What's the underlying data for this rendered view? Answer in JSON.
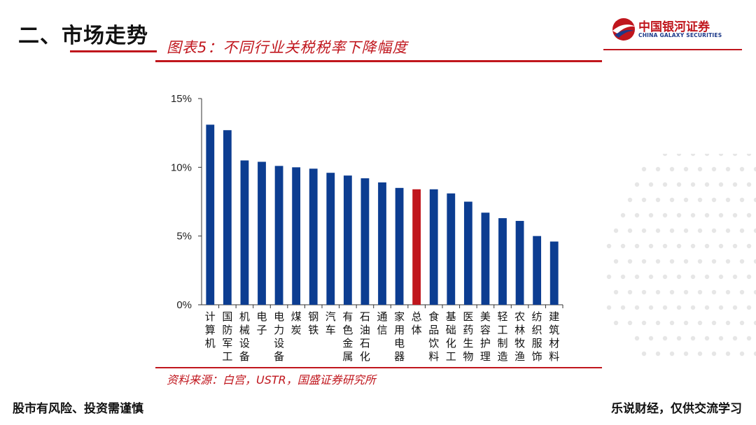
{
  "header": {
    "section_title": "二、市场走势",
    "figure_title": "图表5：不同行业关税税率下降幅度",
    "logo_cn": "中国银河证券",
    "logo_en": "CHINA GALAXY SECURITIES"
  },
  "source": "资料来源：白宫，USTR，国盛证券研究所",
  "footer": {
    "left": "股市有风险、投资需谨慎",
    "right": "乐说财经，仅供交流学习"
  },
  "colors": {
    "bar": "#0c3d91",
    "highlight": "#c0161d",
    "accent": "#c0161d"
  },
  "chart_data": {
    "type": "bar",
    "categories": [
      "计算机",
      "国防军工",
      "机械设备",
      "电子",
      "电力设备",
      "煤炭",
      "钢铁",
      "汽车",
      "有色金属",
      "石油石化",
      "通信",
      "家用电器",
      "总体",
      "食品饮料",
      "基础化工",
      "医药生物",
      "美容护理",
      "轻工制造",
      "农林牧渔",
      "纺织服饰",
      "建筑材料"
    ],
    "values": [
      13.1,
      12.7,
      10.5,
      10.4,
      10.1,
      10.0,
      9.9,
      9.6,
      9.4,
      9.2,
      8.9,
      8.5,
      8.4,
      8.4,
      8.1,
      7.5,
      6.7,
      6.3,
      6.1,
      5.0,
      4.6
    ],
    "highlight_category": "总体",
    "ylim": [
      0,
      15
    ],
    "yticks": [
      0,
      5,
      10,
      15
    ],
    "ytick_labels": [
      "0%",
      "5%",
      "10%",
      "15%"
    ],
    "grid": false,
    "legend": "none"
  }
}
